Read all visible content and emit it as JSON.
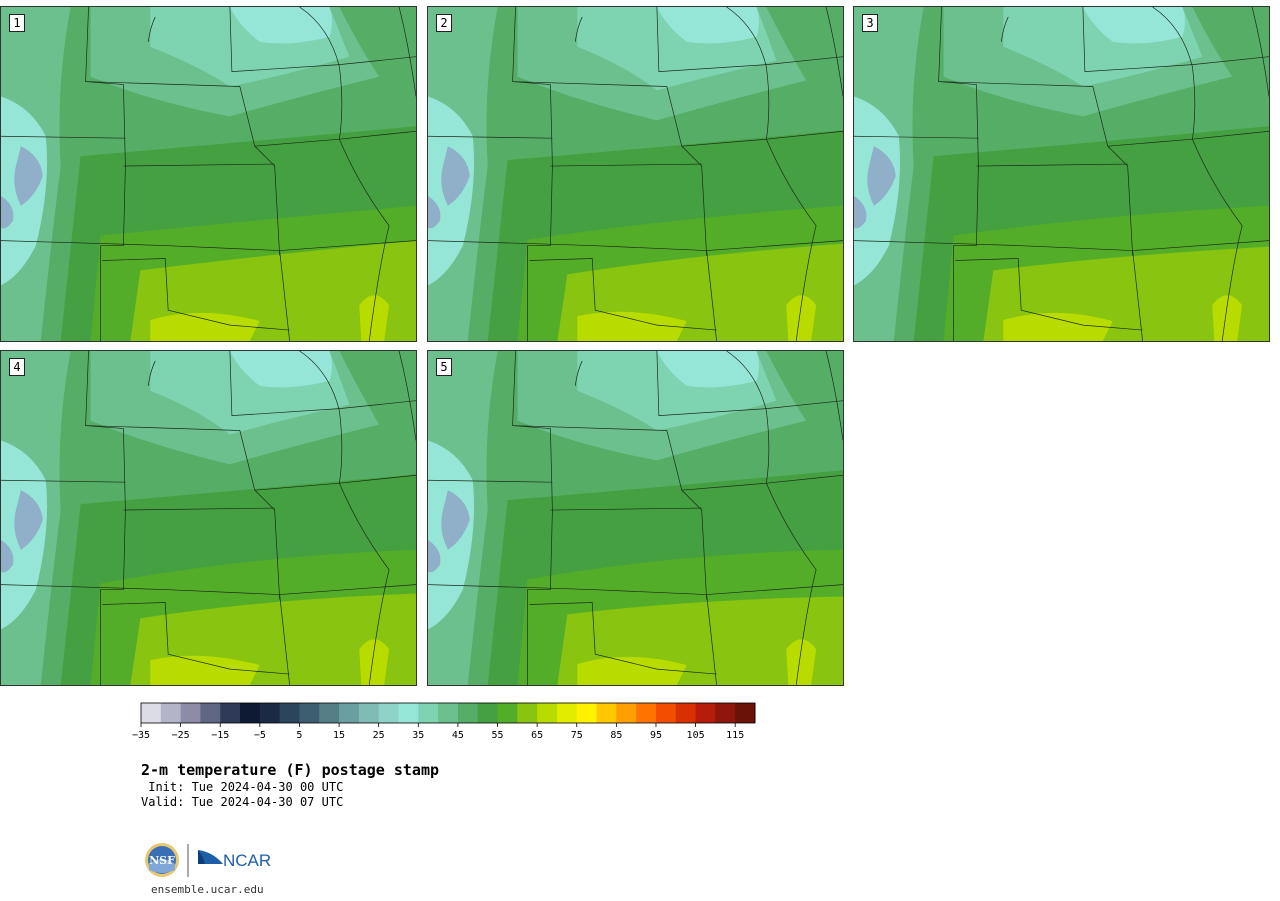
{
  "panels": [
    {
      "label": "1"
    },
    {
      "label": "2"
    },
    {
      "label": "3"
    },
    {
      "label": "4"
    },
    {
      "label": "5"
    }
  ],
  "colorbar": {
    "ticks": [
      "−35",
      "−25",
      "−15",
      "−5",
      "5",
      "15",
      "25",
      "35",
      "45",
      "55",
      "65",
      "75",
      "85",
      "95",
      "105",
      "115"
    ],
    "colors": [
      "#dcdce6",
      "#b4b4c8",
      "#8c8ca8",
      "#5f6785",
      "#2e3a57",
      "#0e1a33",
      "#1a2a45",
      "#2b455c",
      "#3d5e70",
      "#537f87",
      "#6a9ea0",
      "#7fbab5",
      "#8fd2c8",
      "#96e6d8",
      "#7ed4b0",
      "#6cc08e",
      "#55ad66",
      "#44a040",
      "#54ad28",
      "#88c410",
      "#b8dc00",
      "#e0ec00",
      "#fff200",
      "#ffc800",
      "#ff9e00",
      "#ff7400",
      "#f24d00",
      "#d83000",
      "#b51c0a",
      "#8e160c",
      "#6a1208"
    ]
  },
  "title": "2-m temperature (F) postage stamp",
  "init_line": " Init: Tue 2024-04-30 00 UTC",
  "valid_line": "Valid: Tue 2024-04-30 07 UTC",
  "logos": {
    "nsf": "NSF",
    "ncar": "NCAR"
  },
  "url": "ensemble.ucar.edu"
}
